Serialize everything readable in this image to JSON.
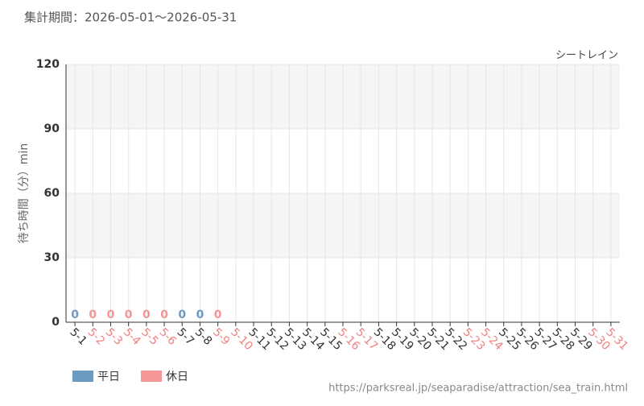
{
  "chart_data": {
    "type": "bar",
    "subtitle": "集計期間：2026-05-01〜2026-05-31",
    "title": "シートレイン",
    "y_label": "待ち時間（分）min",
    "source": "https://parksreal.jp/seaparadise/attraction/sea_train.html",
    "categories": [
      "5-1",
      "5-2",
      "5-3",
      "5-4",
      "5-5",
      "5-6",
      "5-7",
      "5-8",
      "5-9",
      "5-10",
      "5-11",
      "5-12",
      "5-13",
      "5-14",
      "5-15",
      "5-16",
      "5-17",
      "5-18",
      "5-19",
      "5-20",
      "5-21",
      "5-22",
      "5-23",
      "5-24",
      "5-25",
      "5-26",
      "5-27",
      "5-28",
      "5-29",
      "5-30",
      "5-31"
    ],
    "category_label_colors": [
      "#333333",
      "#f08080",
      "#f08080",
      "#f08080",
      "#f08080",
      "#f08080",
      "#333333",
      "#333333",
      "#f08080",
      "#f08080",
      "#333333",
      "#333333",
      "#333333",
      "#333333",
      "#333333",
      "#f08080",
      "#f08080",
      "#333333",
      "#333333",
      "#333333",
      "#333333",
      "#333333",
      "#f08080",
      "#f08080",
      "#333333",
      "#333333",
      "#333333",
      "#333333",
      "#333333",
      "#f08080",
      "#f08080"
    ],
    "series": [
      {
        "name": "平日",
        "color": "#6b9bc3",
        "values": [
          0,
          null,
          null,
          null,
          null,
          null,
          0,
          0,
          null,
          null,
          null,
          null,
          null,
          null,
          null,
          null,
          null,
          null,
          null,
          null,
          null,
          null,
          null,
          null,
          null,
          null,
          null,
          null,
          null,
          null,
          null
        ]
      },
      {
        "name": "休日",
        "color": "#f59595",
        "values": [
          null,
          0,
          0,
          0,
          0,
          0,
          null,
          null,
          0,
          null,
          null,
          null,
          null,
          null,
          null,
          null,
          null,
          null,
          null,
          null,
          null,
          null,
          null,
          null,
          null,
          null,
          null,
          null,
          null,
          null,
          null
        ]
      }
    ],
    "ylim": [
      0,
      120
    ],
    "yticks": [
      0,
      30,
      60,
      90,
      120
    ],
    "grid": true
  }
}
